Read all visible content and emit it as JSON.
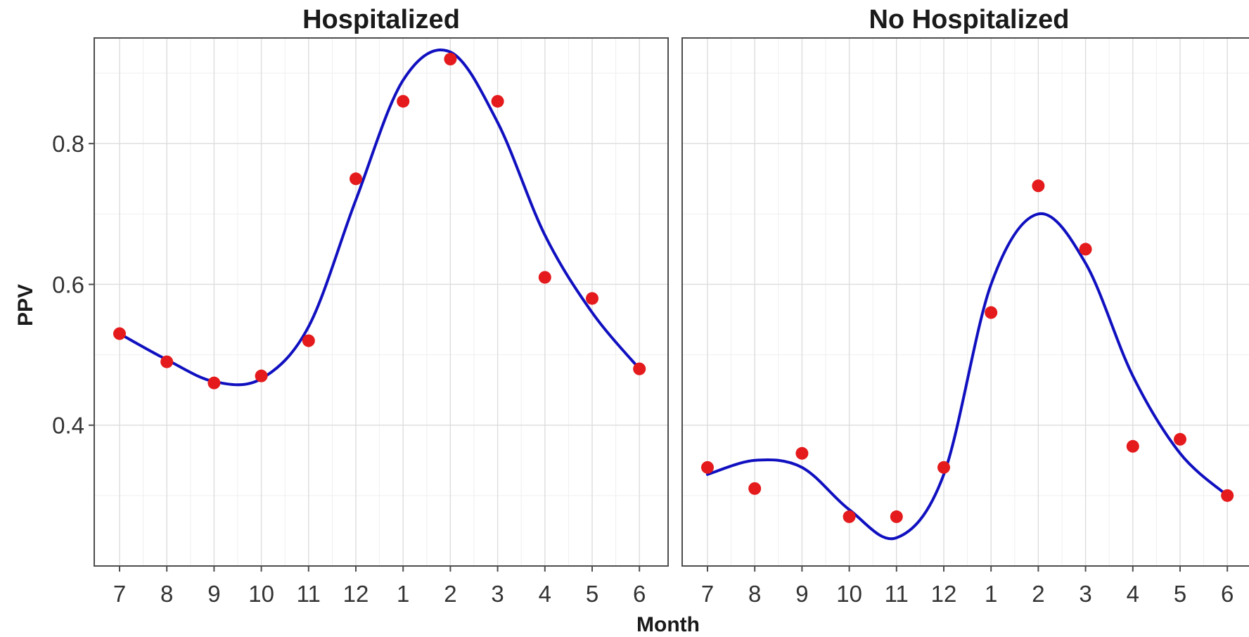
{
  "chart_data": {
    "type": "scatter",
    "xlabel": "Month",
    "ylabel": "PPV",
    "grid": true,
    "legend": "none",
    "x_categories": [
      "7",
      "8",
      "9",
      "10",
      "11",
      "12",
      "1",
      "2",
      "3",
      "4",
      "5",
      "6"
    ],
    "y_ticks": [
      0.4,
      0.6,
      0.8
    ],
    "y_tick_labels": [
      "0.4",
      "0.6",
      "0.8"
    ],
    "ylim": [
      0.2,
      0.95
    ],
    "point_color": "#e41a1c",
    "line_color": "#1010c0",
    "facets": [
      {
        "title": "Hospitalized",
        "points": [
          0.53,
          0.49,
          0.46,
          0.47,
          0.52,
          0.75,
          0.86,
          0.92,
          0.86,
          0.61,
          0.58,
          0.48
        ],
        "smooth": [
          0.53,
          0.493,
          0.462,
          0.466,
          0.54,
          0.72,
          0.89,
          0.93,
          0.83,
          0.67,
          0.56,
          0.48
        ]
      },
      {
        "title": "No Hospitalized",
        "points": [
          0.34,
          0.31,
          0.36,
          0.27,
          0.27,
          0.34,
          0.56,
          0.74,
          0.65,
          0.37,
          0.38,
          0.3
        ],
        "smooth": [
          0.33,
          0.35,
          0.34,
          0.28,
          0.24,
          0.33,
          0.6,
          0.7,
          0.63,
          0.47,
          0.36,
          0.3
        ]
      }
    ]
  }
}
